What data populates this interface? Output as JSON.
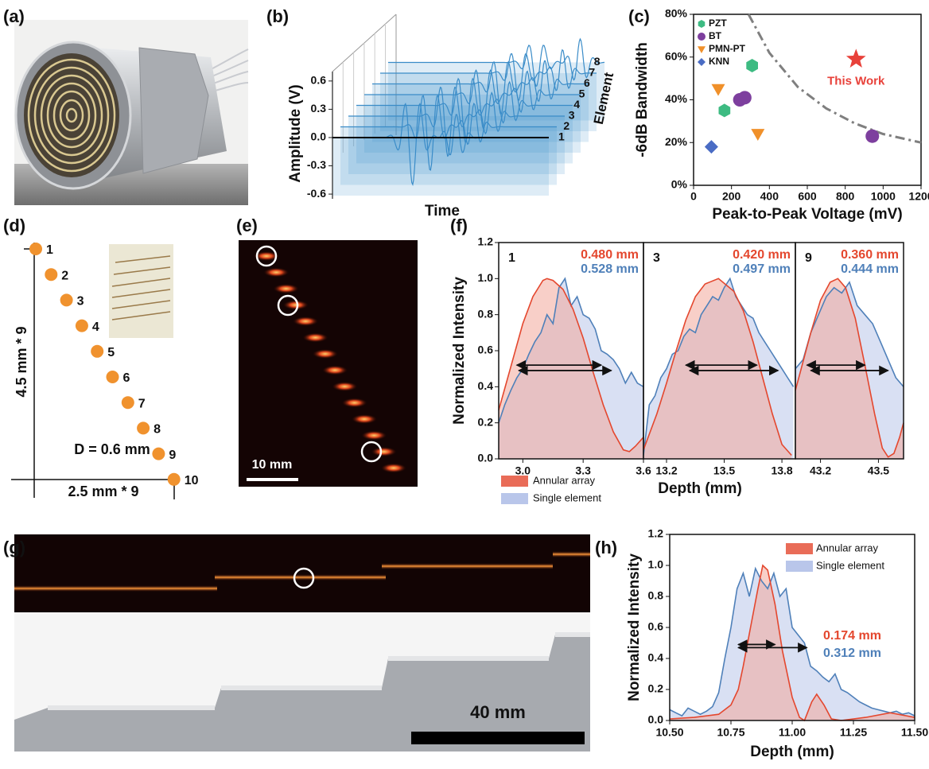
{
  "panel_labels": [
    "(a)",
    "(b)",
    "(c)",
    "(d)",
    "(e)",
    "(f)",
    "(g)",
    "(h)"
  ],
  "chart_data": [
    {
      "type": "waterfall",
      "ylabel": "Amplitude (V)",
      "xlabel": "Time",
      "zlabel": "Element",
      "ylim": [
        -0.65,
        0.7
      ],
      "yticks": [
        0.6,
        0.3,
        {
          "value": 0,
          "label": "0.0"
        },
        -0.3,
        -0.6
      ],
      "zticks": [
        1,
        2,
        3,
        4,
        5,
        6,
        7,
        8
      ],
      "color": "#3a8cc8"
    },
    {
      "type": "scatter",
      "xlabel": "Peak-to-Peak Voltage (mV)",
      "ylabel": "-6dB Bandwidth",
      "xlim": [
        0,
        1200
      ],
      "xticks": [
        0,
        200,
        400,
        600,
        800,
        1000,
        1200
      ],
      "ylim": [
        0,
        80
      ],
      "yticks": [
        {
          "value": 0,
          "label": "0%"
        },
        {
          "value": 20,
          "label": "20%"
        },
        {
          "value": 40,
          "label": "40%"
        },
        {
          "value": 60,
          "label": "60%"
        },
        {
          "value": 80,
          "label": "80%"
        }
      ],
      "legend": "upper left",
      "series": [
        {
          "name": "PZT",
          "color": "#3dbb82",
          "marker": "hexagon",
          "x": [
            163,
            309
          ],
          "values": [
            35,
            56
          ]
        },
        {
          "name": "BT",
          "color": "#7d3f9e",
          "marker": "circle",
          "x": [
            244,
            270,
            943
          ],
          "values": [
            40,
            41,
            23
          ]
        },
        {
          "name": "PMN-PT",
          "color": "#f0902a",
          "marker": "triangle-down",
          "x": [
            130,
            339
          ],
          "values": [
            45,
            24
          ]
        },
        {
          "name": "KNN",
          "color": "#4a6cc4",
          "marker": "diamond",
          "x": [
            94
          ],
          "values": [
            18
          ]
        }
      ],
      "highlight": {
        "label": "This Work",
        "color": "#e8413a",
        "marker": "star",
        "x": 857,
        "value": 59
      },
      "trend_line": {
        "color": "#7f7f7f",
        "x": [
          290,
          400,
          550,
          700,
          850,
          1000,
          1200
        ],
        "values": [
          80,
          62,
          46,
          36,
          29,
          24,
          20
        ]
      }
    },
    {
      "type": "line-panels",
      "ylabel": "Normalized Intensity",
      "xlabel": "Depth (mm)",
      "ylim": [
        0,
        1.2
      ],
      "yticks": [
        {
          "value": 0,
          "label": "0.0"
        },
        0.2,
        0.4,
        0.6,
        0.8,
        {
          "value": 1,
          "label": "1.0"
        },
        1.2
      ],
      "series_styles": [
        {
          "name": "Annular array",
          "color": "#e4472e",
          "fill": "#f2a79b"
        },
        {
          "name": "Single element",
          "color": "#4f80b9",
          "fill": "#b9c6ea"
        }
      ],
      "panels": [
        {
          "label": "1",
          "xlim": [
            2.88,
            3.6
          ],
          "xticks": [
            {
              "value": 3,
              "label": "3.0"
            },
            3.3,
            3.6
          ],
          "width_labels": [
            "0.480 mm",
            "0.528 mm"
          ],
          "series": [
            {
              "x": [
                2.88,
                2.95,
                3.0,
                3.05,
                3.1,
                3.12,
                3.15,
                3.2,
                3.25,
                3.3,
                3.35,
                3.4,
                3.45,
                3.5,
                3.53,
                3.56,
                3.6
              ],
              "values": [
                0.27,
                0.55,
                0.75,
                0.9,
                0.99,
                1.0,
                0.99,
                0.94,
                0.83,
                0.67,
                0.48,
                0.3,
                0.15,
                0.05,
                0.04,
                0.07,
                0.12
              ]
            },
            {
              "x": [
                2.88,
                2.91,
                2.94,
                2.97,
                3.0,
                3.03,
                3.06,
                3.09,
                3.12,
                3.15,
                3.18,
                3.21,
                3.24,
                3.27,
                3.3,
                3.33,
                3.36,
                3.39,
                3.42,
                3.45,
                3.48,
                3.51,
                3.54,
                3.57,
                3.6
              ],
              "values": [
                0.2,
                0.3,
                0.38,
                0.45,
                0.5,
                0.58,
                0.65,
                0.7,
                0.8,
                0.75,
                0.95,
                1.0,
                0.85,
                0.9,
                0.8,
                0.78,
                0.72,
                0.6,
                0.58,
                0.55,
                0.5,
                0.42,
                0.48,
                0.42,
                0.4
              ]
            }
          ],
          "fwhm": [
            {
              "x": [
                2.97,
                3.39
              ],
              "y": 0.52
            },
            {
              "x": [
                2.98,
                3.44
              ],
              "y": 0.49
            }
          ]
        },
        {
          "label": "3",
          "xlim": [
            13.08,
            13.87
          ],
          "xticks": [
            13.2,
            13.5,
            13.8
          ],
          "width_labels": [
            "0.420 mm",
            "0.497 mm"
          ],
          "series": [
            {
              "x": [
                13.08,
                13.15,
                13.2,
                13.25,
                13.3,
                13.35,
                13.4,
                13.47,
                13.55,
                13.6,
                13.65,
                13.7,
                13.75,
                13.8,
                13.85
              ],
              "values": [
                0.05,
                0.25,
                0.42,
                0.6,
                0.77,
                0.9,
                0.97,
                1.0,
                0.93,
                0.82,
                0.65,
                0.45,
                0.25,
                0.08,
                0.02
              ]
            },
            {
              "x": [
                13.08,
                13.11,
                13.14,
                13.17,
                13.2,
                13.23,
                13.26,
                13.29,
                13.32,
                13.35,
                13.38,
                13.41,
                13.44,
                13.47,
                13.5,
                13.53,
                13.56,
                13.59,
                13.62,
                13.65,
                13.68,
                13.71,
                13.74,
                13.77,
                13.8,
                13.83,
                13.86
              ],
              "values": [
                0.02,
                0.3,
                0.35,
                0.45,
                0.5,
                0.58,
                0.6,
                0.68,
                0.72,
                0.7,
                0.8,
                0.85,
                0.9,
                0.88,
                0.95,
                1.0,
                0.9,
                0.85,
                0.8,
                0.78,
                0.7,
                0.65,
                0.6,
                0.55,
                0.5,
                0.45,
                0.4
              ]
            }
          ],
          "fwhm": [
            {
              "x": [
                13.3,
                13.67
              ],
              "y": 0.52
            },
            {
              "x": [
                13.32,
                13.78
              ],
              "y": 0.49
            }
          ]
        },
        {
          "label": "9",
          "xlim": [
            43.07,
            43.63
          ],
          "xticks": [
            43.2,
            43.5
          ],
          "width_labels": [
            "0.360 mm",
            "0.444 mm"
          ],
          "series": [
            {
              "x": [
                43.07,
                43.1,
                43.15,
                43.2,
                43.25,
                43.29,
                43.33,
                43.38,
                43.43,
                43.48,
                43.52,
                43.55,
                43.58,
                43.61,
                43.63
              ],
              "values": [
                0.38,
                0.5,
                0.7,
                0.88,
                0.98,
                1.0,
                0.95,
                0.78,
                0.52,
                0.25,
                0.06,
                0.01,
                0.03,
                0.12,
                0.2
              ]
            },
            {
              "x": [
                43.07,
                43.11,
                43.15,
                43.19,
                43.23,
                43.27,
                43.31,
                43.35,
                43.39,
                43.43,
                43.47,
                43.51,
                43.55,
                43.59,
                43.63
              ],
              "values": [
                0.5,
                0.55,
                0.7,
                0.8,
                0.9,
                0.95,
                0.92,
                0.98,
                0.85,
                0.8,
                0.75,
                0.65,
                0.55,
                0.45,
                0.4
              ]
            }
          ],
          "fwhm": [
            {
              "x": [
                43.13,
                43.43
              ],
              "y": 0.52
            },
            {
              "x": [
                43.15,
                43.55
              ],
              "y": 0.49
            }
          ]
        }
      ]
    },
    {
      "type": "line",
      "ylabel": "Normalized Intensity",
      "xlabel": "Depth (mm)",
      "xlim": [
        10.5,
        11.5
      ],
      "xticks": [
        {
          "value": 10.5,
          "label": "10.50"
        },
        {
          "value": 10.75,
          "label": "10.75"
        },
        {
          "value": 11,
          "label": "11.00"
        },
        {
          "value": 11.25,
          "label": "11.25"
        },
        {
          "value": 11.5,
          "label": "11.50"
        }
      ],
      "ylim": [
        0,
        1.2
      ],
      "yticks": [
        {
          "value": 0,
          "label": "0.0"
        },
        0.2,
        0.4,
        0.6,
        0.8,
        {
          "value": 1,
          "label": "1.0"
        },
        1.2
      ],
      "legend": "upper right",
      "series": [
        {
          "name": "Annular array",
          "color": "#e4472e",
          "fill": "#f2a79b",
          "x": [
            10.5,
            10.6,
            10.7,
            10.75,
            10.78,
            10.8,
            10.83,
            10.86,
            10.88,
            10.9,
            10.93,
            10.96,
            11.0,
            11.03,
            11.05,
            11.08,
            11.1,
            11.13,
            11.16,
            11.2,
            11.3,
            11.4,
            11.5
          ],
          "values": [
            0.01,
            0.02,
            0.04,
            0.1,
            0.2,
            0.35,
            0.6,
            0.85,
            1.0,
            0.97,
            0.75,
            0.45,
            0.15,
            0.02,
            0.0,
            0.12,
            0.17,
            0.1,
            0.01,
            0.0,
            0.02,
            0.05,
            0.02
          ]
        },
        {
          "name": "Single element",
          "color": "#4f80b9",
          "fill": "#b9c6ea",
          "x": [
            10.5,
            10.525,
            10.55,
            10.575,
            10.6,
            10.625,
            10.65,
            10.675,
            10.7,
            10.725,
            10.75,
            10.775,
            10.8,
            10.825,
            10.85,
            10.875,
            10.9,
            10.925,
            10.95,
            10.975,
            11,
            11.025,
            11.05,
            11.075,
            11.1,
            11.125,
            11.15,
            11.175,
            11.2,
            11.225,
            11.25,
            11.275,
            11.3,
            11.325,
            11.35,
            11.375,
            11.4,
            11.425,
            11.45,
            11.475,
            11.5
          ],
          "values": [
            0.07,
            0.05,
            0.03,
            0.08,
            0.06,
            0.04,
            0.06,
            0.09,
            0.18,
            0.4,
            0.6,
            0.85,
            0.95,
            0.8,
            0.98,
            0.9,
            0.85,
            0.95,
            0.8,
            0.85,
            0.6,
            0.55,
            0.5,
            0.35,
            0.32,
            0.28,
            0.25,
            0.3,
            0.2,
            0.18,
            0.15,
            0.12,
            0.1,
            0.08,
            0.07,
            0.06,
            0.05,
            0.06,
            0.04,
            0.05,
            0.03
          ]
        }
      ],
      "width_labels": [
        "0.174 mm",
        "0.312 mm"
      ],
      "fwhm": [
        {
          "x": [
            10.78,
            10.93
          ],
          "y": 0.49
        },
        {
          "x": [
            10.78,
            11.06
          ],
          "y": 0.47
        }
      ]
    }
  ],
  "d": {
    "points": [
      1,
      2,
      3,
      4,
      5,
      6,
      7,
      8,
      9,
      10
    ],
    "color": "#f0922e",
    "vertical_label": "4.5 mm * 9",
    "horizontal_label": "2.5 mm * 9",
    "diameter_label": "D = 0.6 mm"
  },
  "e": {
    "scale_bar": "10 mm"
  },
  "g": {
    "scale_bar": "40 mm"
  }
}
